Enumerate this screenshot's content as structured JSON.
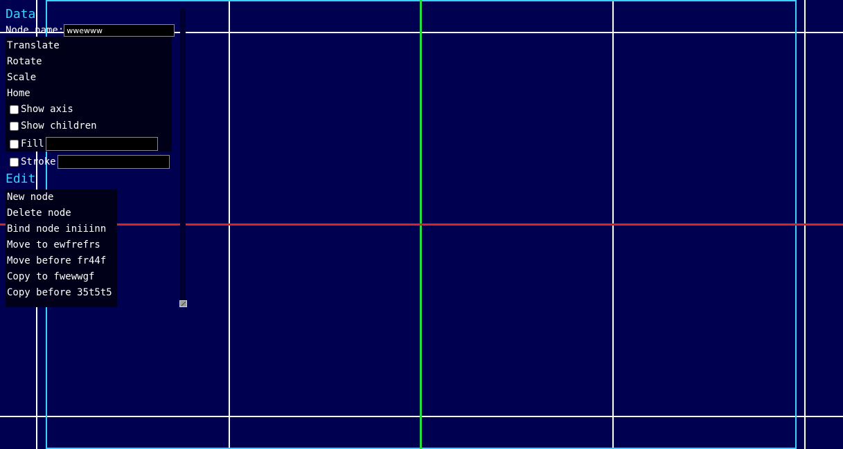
{
  "data_section": {
    "title": "Data",
    "node_name_label": "Node name:",
    "node_name_value": "wwewww",
    "actions": [
      "Translate",
      "Rotate",
      "Scale",
      "Home"
    ],
    "show_axis_label": "Show axis",
    "show_children_label": "Show children",
    "fill_label": "Fill",
    "stroke_label": "Stroke"
  },
  "edit_section": {
    "title": "Edit",
    "actions": [
      "New node",
      "Delete node",
      "Bind node iniiinn",
      "Move to ewfrefrs",
      "Move before fr44f",
      "Copy to fwewwgf",
      "Copy before 35t5t5"
    ]
  },
  "colors": {
    "background": "#000050",
    "grid_lines": "#ffffff",
    "frame": "#33d4ff",
    "y_axis": "#22dd44",
    "x_axis": "#dd2222",
    "section_title": "#33d4ff"
  }
}
